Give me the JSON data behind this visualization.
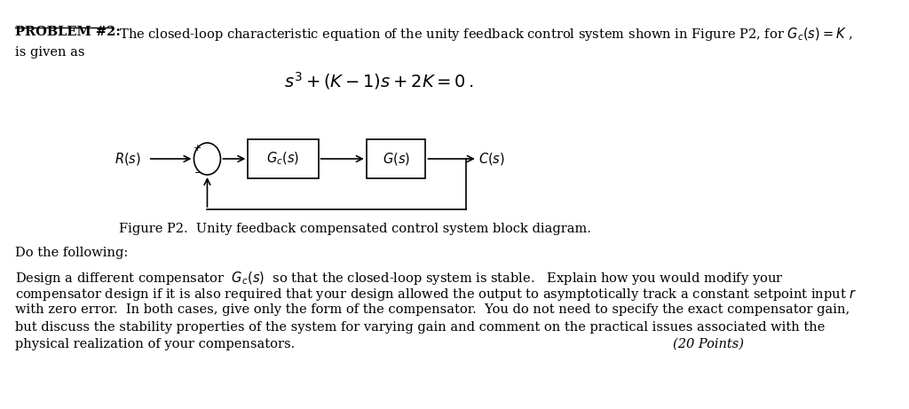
{
  "background_color": "#ffffff",
  "figure_caption": "Figure P2.  Unity feedback compensated control system block diagram.",
  "do_following": "Do the following:",
  "points": "(20 Points)",
  "font_size_body": 10.5,
  "font_size_eq": 13,
  "font_size_caption": 10.5
}
